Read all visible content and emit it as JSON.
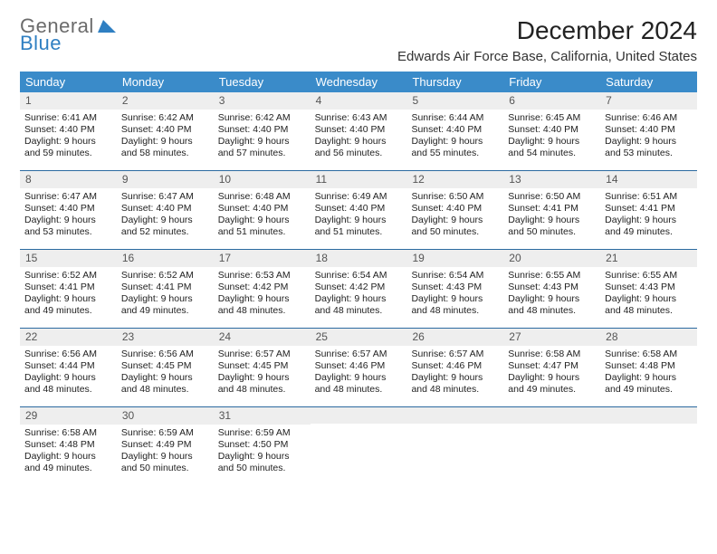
{
  "logo": {
    "word1": "General",
    "word2": "Blue"
  },
  "title": "December 2024",
  "subtitle": "Edwards Air Force Base, California, United States",
  "colors": {
    "header_bg": "#3a8bc9",
    "header_text": "#ffffff",
    "daynum_bg": "#eeeeee",
    "rule": "#2b6aa0",
    "logo_gray": "#6b6b6b",
    "logo_blue": "#2f7fc2"
  },
  "font_sizes": {
    "title": 28,
    "subtitle": 15,
    "weekday": 13,
    "daynum": 12,
    "body": 10.5
  },
  "weekdays": [
    "Sunday",
    "Monday",
    "Tuesday",
    "Wednesday",
    "Thursday",
    "Friday",
    "Saturday"
  ],
  "weeks": [
    [
      {
        "n": "1",
        "sr": "Sunrise: 6:41 AM",
        "ss": "Sunset: 4:40 PM",
        "d1": "Daylight: 9 hours",
        "d2": "and 59 minutes."
      },
      {
        "n": "2",
        "sr": "Sunrise: 6:42 AM",
        "ss": "Sunset: 4:40 PM",
        "d1": "Daylight: 9 hours",
        "d2": "and 58 minutes."
      },
      {
        "n": "3",
        "sr": "Sunrise: 6:42 AM",
        "ss": "Sunset: 4:40 PM",
        "d1": "Daylight: 9 hours",
        "d2": "and 57 minutes."
      },
      {
        "n": "4",
        "sr": "Sunrise: 6:43 AM",
        "ss": "Sunset: 4:40 PM",
        "d1": "Daylight: 9 hours",
        "d2": "and 56 minutes."
      },
      {
        "n": "5",
        "sr": "Sunrise: 6:44 AM",
        "ss": "Sunset: 4:40 PM",
        "d1": "Daylight: 9 hours",
        "d2": "and 55 minutes."
      },
      {
        "n": "6",
        "sr": "Sunrise: 6:45 AM",
        "ss": "Sunset: 4:40 PM",
        "d1": "Daylight: 9 hours",
        "d2": "and 54 minutes."
      },
      {
        "n": "7",
        "sr": "Sunrise: 6:46 AM",
        "ss": "Sunset: 4:40 PM",
        "d1": "Daylight: 9 hours",
        "d2": "and 53 minutes."
      }
    ],
    [
      {
        "n": "8",
        "sr": "Sunrise: 6:47 AM",
        "ss": "Sunset: 4:40 PM",
        "d1": "Daylight: 9 hours",
        "d2": "and 53 minutes."
      },
      {
        "n": "9",
        "sr": "Sunrise: 6:47 AM",
        "ss": "Sunset: 4:40 PM",
        "d1": "Daylight: 9 hours",
        "d2": "and 52 minutes."
      },
      {
        "n": "10",
        "sr": "Sunrise: 6:48 AM",
        "ss": "Sunset: 4:40 PM",
        "d1": "Daylight: 9 hours",
        "d2": "and 51 minutes."
      },
      {
        "n": "11",
        "sr": "Sunrise: 6:49 AM",
        "ss": "Sunset: 4:40 PM",
        "d1": "Daylight: 9 hours",
        "d2": "and 51 minutes."
      },
      {
        "n": "12",
        "sr": "Sunrise: 6:50 AM",
        "ss": "Sunset: 4:40 PM",
        "d1": "Daylight: 9 hours",
        "d2": "and 50 minutes."
      },
      {
        "n": "13",
        "sr": "Sunrise: 6:50 AM",
        "ss": "Sunset: 4:41 PM",
        "d1": "Daylight: 9 hours",
        "d2": "and 50 minutes."
      },
      {
        "n": "14",
        "sr": "Sunrise: 6:51 AM",
        "ss": "Sunset: 4:41 PM",
        "d1": "Daylight: 9 hours",
        "d2": "and 49 minutes."
      }
    ],
    [
      {
        "n": "15",
        "sr": "Sunrise: 6:52 AM",
        "ss": "Sunset: 4:41 PM",
        "d1": "Daylight: 9 hours",
        "d2": "and 49 minutes."
      },
      {
        "n": "16",
        "sr": "Sunrise: 6:52 AM",
        "ss": "Sunset: 4:41 PM",
        "d1": "Daylight: 9 hours",
        "d2": "and 49 minutes."
      },
      {
        "n": "17",
        "sr": "Sunrise: 6:53 AM",
        "ss": "Sunset: 4:42 PM",
        "d1": "Daylight: 9 hours",
        "d2": "and 48 minutes."
      },
      {
        "n": "18",
        "sr": "Sunrise: 6:54 AM",
        "ss": "Sunset: 4:42 PM",
        "d1": "Daylight: 9 hours",
        "d2": "and 48 minutes."
      },
      {
        "n": "19",
        "sr": "Sunrise: 6:54 AM",
        "ss": "Sunset: 4:43 PM",
        "d1": "Daylight: 9 hours",
        "d2": "and 48 minutes."
      },
      {
        "n": "20",
        "sr": "Sunrise: 6:55 AM",
        "ss": "Sunset: 4:43 PM",
        "d1": "Daylight: 9 hours",
        "d2": "and 48 minutes."
      },
      {
        "n": "21",
        "sr": "Sunrise: 6:55 AM",
        "ss": "Sunset: 4:43 PM",
        "d1": "Daylight: 9 hours",
        "d2": "and 48 minutes."
      }
    ],
    [
      {
        "n": "22",
        "sr": "Sunrise: 6:56 AM",
        "ss": "Sunset: 4:44 PM",
        "d1": "Daylight: 9 hours",
        "d2": "and 48 minutes."
      },
      {
        "n": "23",
        "sr": "Sunrise: 6:56 AM",
        "ss": "Sunset: 4:45 PM",
        "d1": "Daylight: 9 hours",
        "d2": "and 48 minutes."
      },
      {
        "n": "24",
        "sr": "Sunrise: 6:57 AM",
        "ss": "Sunset: 4:45 PM",
        "d1": "Daylight: 9 hours",
        "d2": "and 48 minutes."
      },
      {
        "n": "25",
        "sr": "Sunrise: 6:57 AM",
        "ss": "Sunset: 4:46 PM",
        "d1": "Daylight: 9 hours",
        "d2": "and 48 minutes."
      },
      {
        "n": "26",
        "sr": "Sunrise: 6:57 AM",
        "ss": "Sunset: 4:46 PM",
        "d1": "Daylight: 9 hours",
        "d2": "and 48 minutes."
      },
      {
        "n": "27",
        "sr": "Sunrise: 6:58 AM",
        "ss": "Sunset: 4:47 PM",
        "d1": "Daylight: 9 hours",
        "d2": "and 49 minutes."
      },
      {
        "n": "28",
        "sr": "Sunrise: 6:58 AM",
        "ss": "Sunset: 4:48 PM",
        "d1": "Daylight: 9 hours",
        "d2": "and 49 minutes."
      }
    ],
    [
      {
        "n": "29",
        "sr": "Sunrise: 6:58 AM",
        "ss": "Sunset: 4:48 PM",
        "d1": "Daylight: 9 hours",
        "d2": "and 49 minutes."
      },
      {
        "n": "30",
        "sr": "Sunrise: 6:59 AM",
        "ss": "Sunset: 4:49 PM",
        "d1": "Daylight: 9 hours",
        "d2": "and 50 minutes."
      },
      {
        "n": "31",
        "sr": "Sunrise: 6:59 AM",
        "ss": "Sunset: 4:50 PM",
        "d1": "Daylight: 9 hours",
        "d2": "and 50 minutes."
      },
      {
        "n": "",
        "sr": "",
        "ss": "",
        "d1": "",
        "d2": ""
      },
      {
        "n": "",
        "sr": "",
        "ss": "",
        "d1": "",
        "d2": ""
      },
      {
        "n": "",
        "sr": "",
        "ss": "",
        "d1": "",
        "d2": ""
      },
      {
        "n": "",
        "sr": "",
        "ss": "",
        "d1": "",
        "d2": ""
      }
    ]
  ]
}
